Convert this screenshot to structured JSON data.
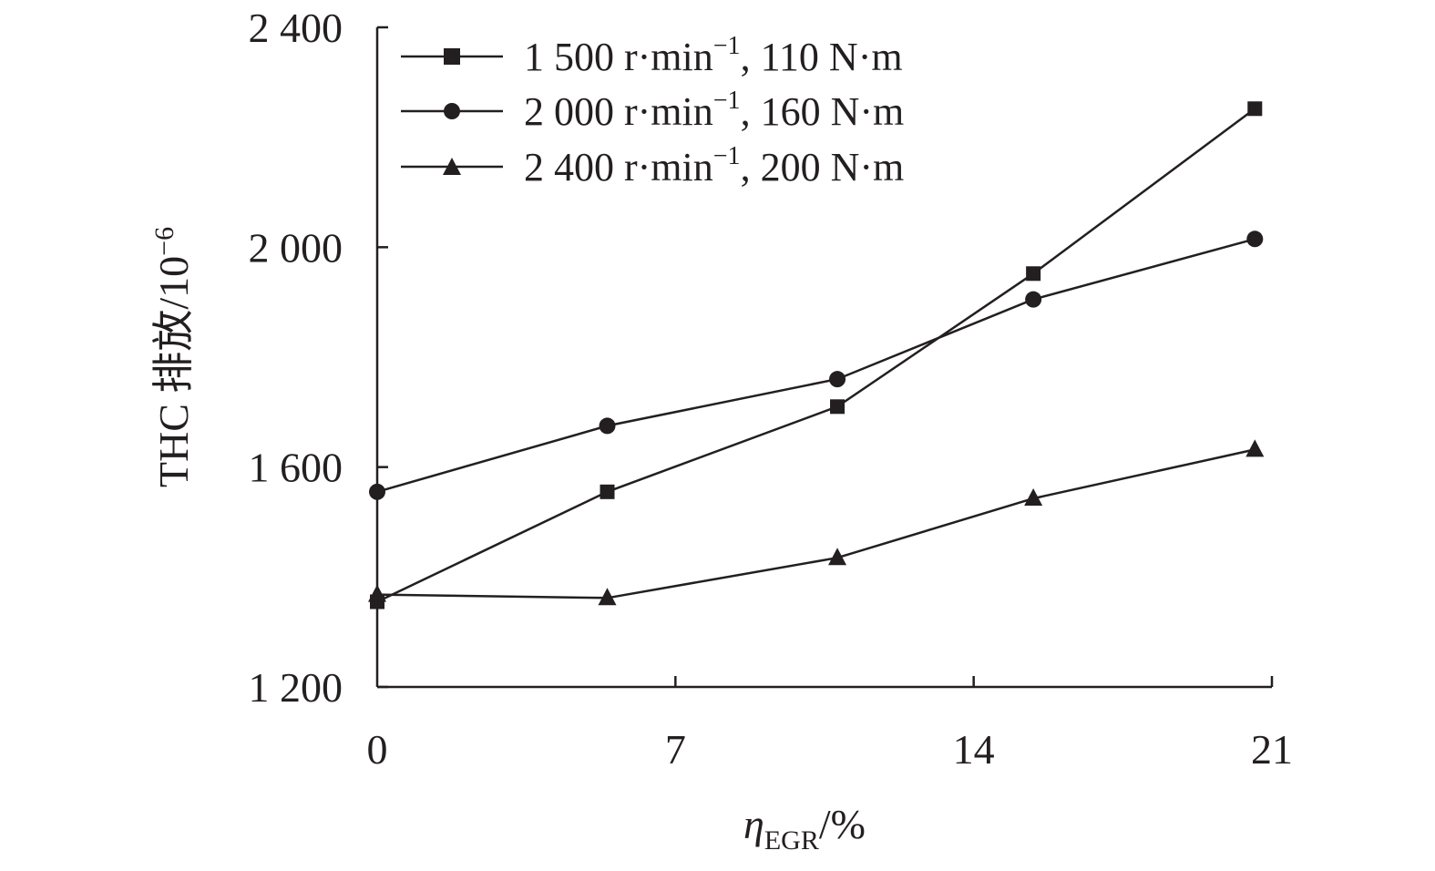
{
  "chart_data": {
    "type": "line",
    "title": "",
    "xlabel": {
      "symbol": "η",
      "subscript": "EGR",
      "suffix": "/%"
    },
    "ylabel": {
      "main": "THC 排放/10",
      "superscript": "−6"
    },
    "xlim": [
      0,
      21
    ],
    "ylim": [
      1200,
      2400
    ],
    "x_ticks": [
      0,
      7,
      14,
      21
    ],
    "x_tick_labels": [
      "0",
      "7",
      "14",
      "21"
    ],
    "y_ticks": [
      1200,
      1600,
      2000,
      2400
    ],
    "y_tick_labels": [
      "1 200",
      "1 600",
      "2 000",
      "2 400"
    ],
    "grid": false,
    "legend_position": "top-left",
    "series": [
      {
        "name": "1 500 r·min⁻¹, 110 N·m",
        "label_pre": "1 500 r·min",
        "label_sup": "−1",
        "label_post": ", 110 N·m",
        "marker": "square",
        "x": [
          0,
          5.4,
          10.8,
          15.4,
          20.6
        ],
        "y": [
          1355,
          1555,
          1710,
          1952,
          2252
        ]
      },
      {
        "name": "2 000 r·min⁻¹, 160 N·m",
        "label_pre": "2 000 r·min",
        "label_sup": "−1",
        "label_post": ", 160 N·m",
        "marker": "circle",
        "x": [
          0,
          5.4,
          10.8,
          15.4,
          20.6
        ],
        "y": [
          1555,
          1675,
          1760,
          1905,
          2015
        ]
      },
      {
        "name": "2 400 r·min⁻¹, 200 N·m",
        "label_pre": "2 400 r·min",
        "label_sup": "−1",
        "label_post": ", 200 N·m",
        "marker": "triangle",
        "x": [
          0,
          5.4,
          10.8,
          15.4,
          20.6
        ],
        "y": [
          1368,
          1362,
          1435,
          1543,
          1632
        ]
      }
    ]
  }
}
